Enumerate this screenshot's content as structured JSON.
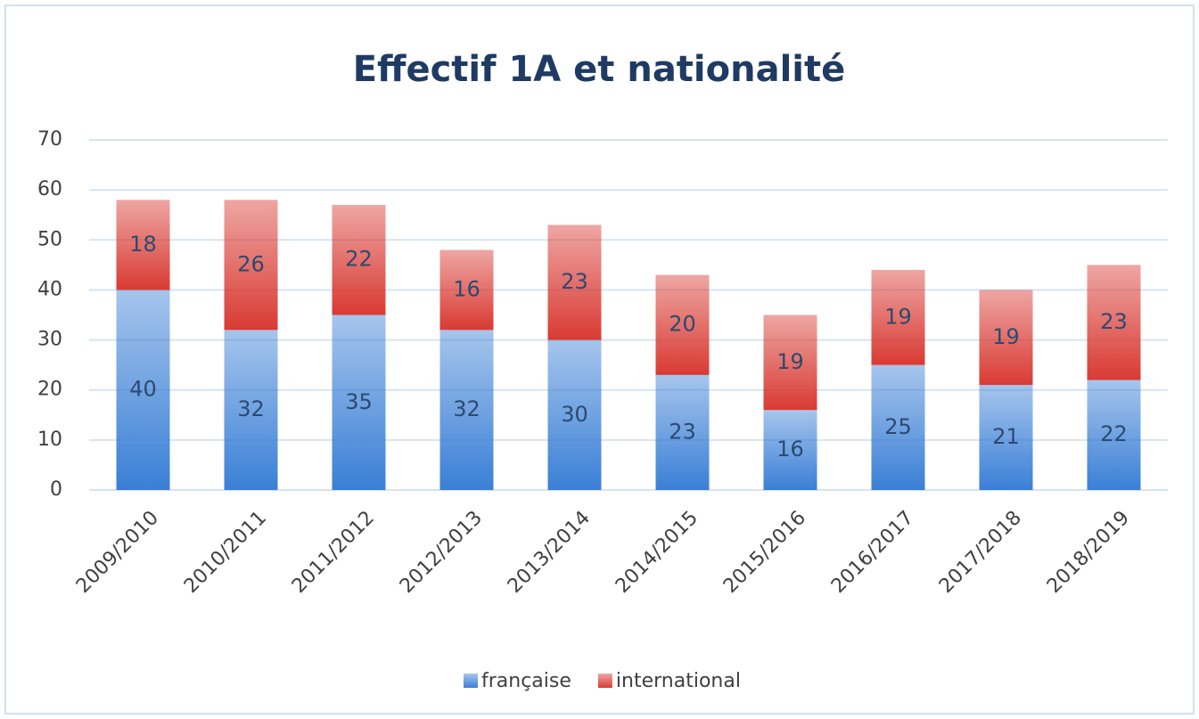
{
  "chart_data": {
    "type": "bar",
    "stacked": true,
    "title": "Effectif 1A et nationalité",
    "categories": [
      "2009/2010",
      "2010/2011",
      "2011/2012",
      "2012/2013",
      "2013/2014",
      "2014/2015",
      "2015/2016",
      "2016/2017",
      "2017/2018",
      "2018/2019"
    ],
    "series": [
      {
        "name": "française",
        "color": "#3a7fd6",
        "values": [
          40,
          32,
          35,
          32,
          30,
          23,
          16,
          25,
          21,
          22
        ]
      },
      {
        "name": "international",
        "color": "#d93a33",
        "values": [
          18,
          26,
          22,
          16,
          23,
          20,
          19,
          19,
          19,
          23
        ]
      }
    ],
    "ylim": [
      0,
      70
    ],
    "yticks": [
      0,
      10,
      20,
      30,
      40,
      50,
      60,
      70
    ],
    "grid": true,
    "legend": "bottom"
  }
}
